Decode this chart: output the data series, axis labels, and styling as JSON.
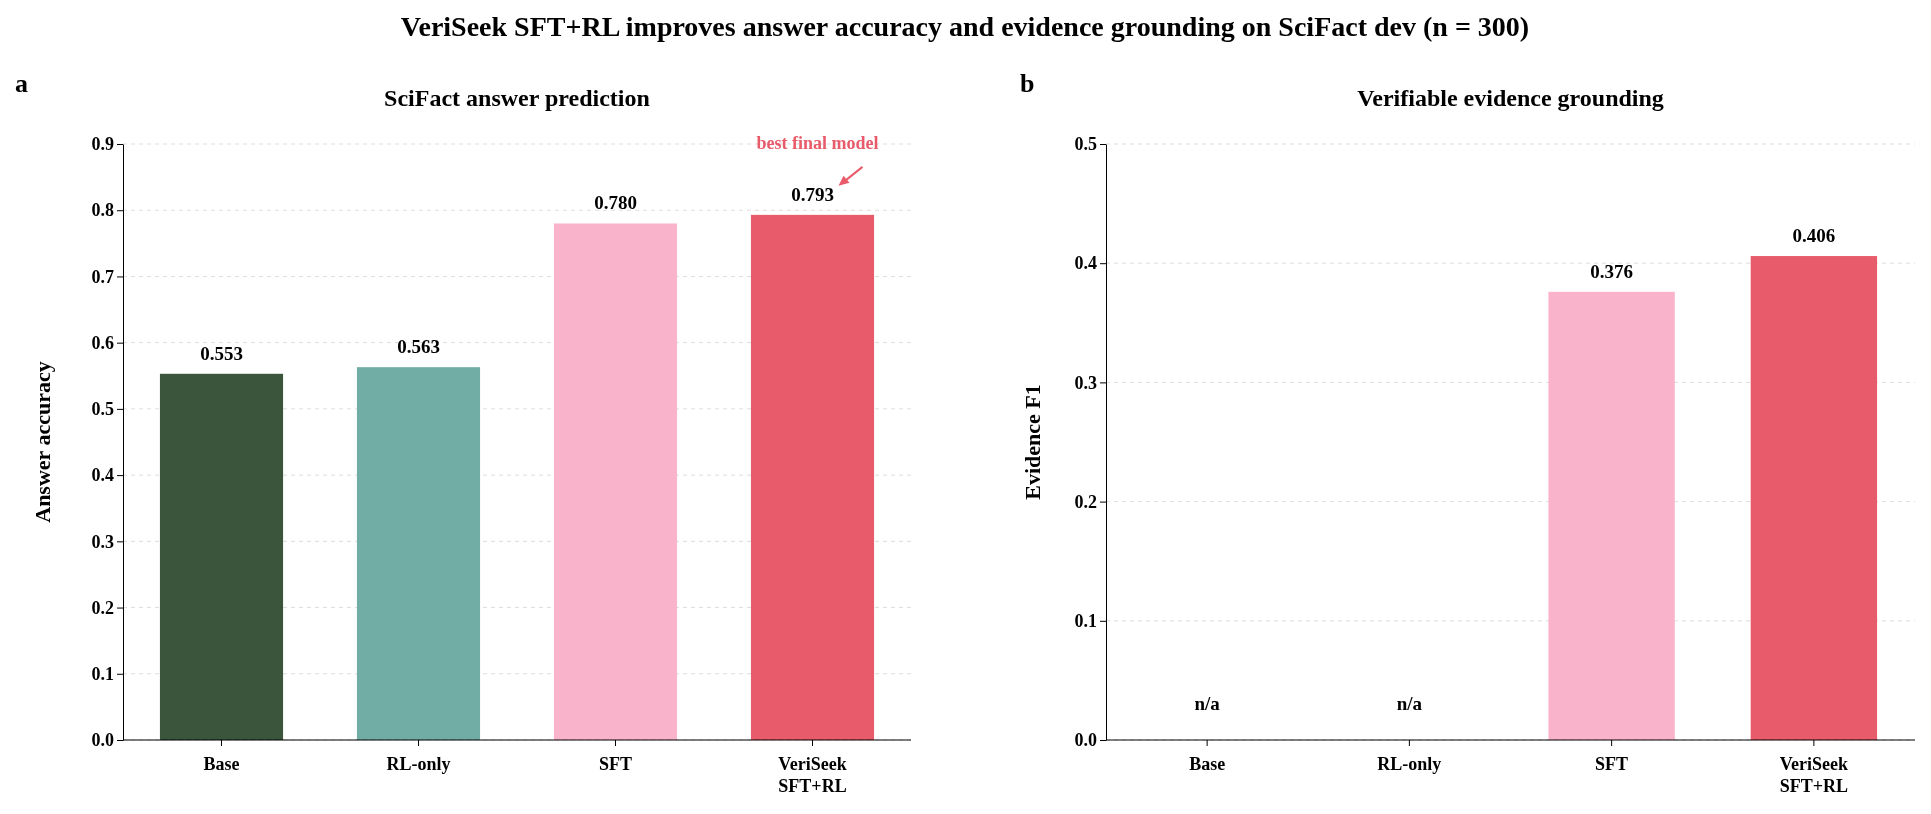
{
  "chart_data": [
    {
      "type": "bar",
      "title": "SciFact answer prediction",
      "ylabel": "Answer accuracy",
      "categories": [
        "Base",
        "RL-only",
        "SFT",
        "VeriSeek\nSFT+RL"
      ],
      "values": [
        0.553,
        0.563,
        0.78,
        0.793
      ],
      "colors": [
        "#3b553c",
        "#72ada5",
        "#f9b4cb",
        "#e85b6a"
      ],
      "value_labels": [
        "0.553",
        "0.563",
        "0.780",
        "0.793"
      ],
      "ylim": [
        0,
        0.9
      ],
      "yticks": [
        {
          "value": 0,
          "label": "0.0"
        },
        {
          "value": 0.1,
          "label": "0.1"
        },
        {
          "value": 0.2,
          "label": "0.2"
        },
        {
          "value": 0.3,
          "label": "0.3"
        },
        {
          "value": 0.4,
          "label": "0.4"
        },
        {
          "value": 0.5,
          "label": "0.5"
        },
        {
          "value": 0.6,
          "label": "0.6"
        },
        {
          "value": 0.7,
          "label": "0.7"
        },
        {
          "value": 0.8,
          "label": "0.8"
        },
        {
          "value": 0.9,
          "label": "0.9"
        }
      ],
      "grid": "y",
      "annotations": [
        "VeriSeek SFT+RL improves answer accuracy and evidence grounding on SciFact dev (n = 300)",
        "a",
        "best final model"
      ]
    },
    {
      "type": "bar",
      "title": "Verifiable evidence grounding",
      "ylabel": "Evidence F1",
      "categories": [
        "Base",
        "RL-only",
        "SFT",
        "VeriSeek\nSFT+RL"
      ],
      "values": [
        null,
        null,
        0.376,
        0.406
      ],
      "colors": [
        null,
        null,
        "#f9b4cb",
        "#e85b6a"
      ],
      "value_labels": [
        "n/a",
        "n/a",
        "0.376",
        "0.406"
      ],
      "ylim": [
        0,
        0.5
      ],
      "yticks": [
        {
          "value": 0,
          "label": "0.0"
        },
        {
          "value": 0.1,
          "label": "0.1"
        },
        {
          "value": 0.2,
          "label": "0.2"
        },
        {
          "value": 0.3,
          "label": "0.3"
        },
        {
          "value": 0.4,
          "label": "0.4"
        },
        {
          "value": 0.5,
          "label": "0.5"
        }
      ],
      "grid": "y",
      "annotations": [
        "b"
      ]
    }
  ]
}
